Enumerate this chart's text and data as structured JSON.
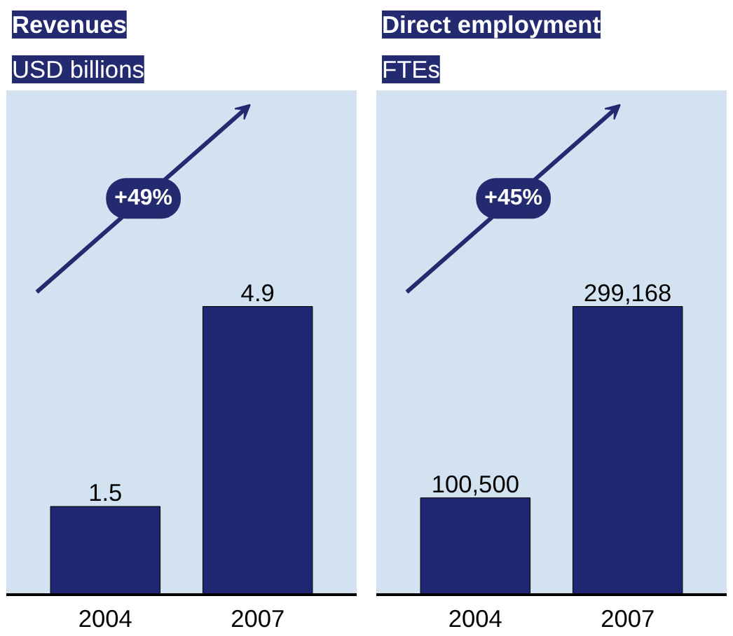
{
  "chart_data": [
    {
      "type": "bar",
      "title": "Revenues",
      "subtitle": "USD billions",
      "categories": [
        "2004",
        "2007"
      ],
      "values": [
        1.5,
        4.9
      ],
      "color": "#1f2772",
      "value_labels": [
        "1.5",
        "4.9"
      ],
      "annotations": [
        "+49%"
      ],
      "tick_labels": "x"
    },
    {
      "type": "bar",
      "title": "Direct employment",
      "subtitle": "FTEs",
      "categories": [
        "2004",
        "2007"
      ],
      "values": [
        100500,
        299168
      ],
      "color": "#1f2772",
      "value_labels": [
        "100,500",
        "299,168"
      ],
      "annotations": [
        "+45%"
      ],
      "tick_labels": "x"
    }
  ]
}
